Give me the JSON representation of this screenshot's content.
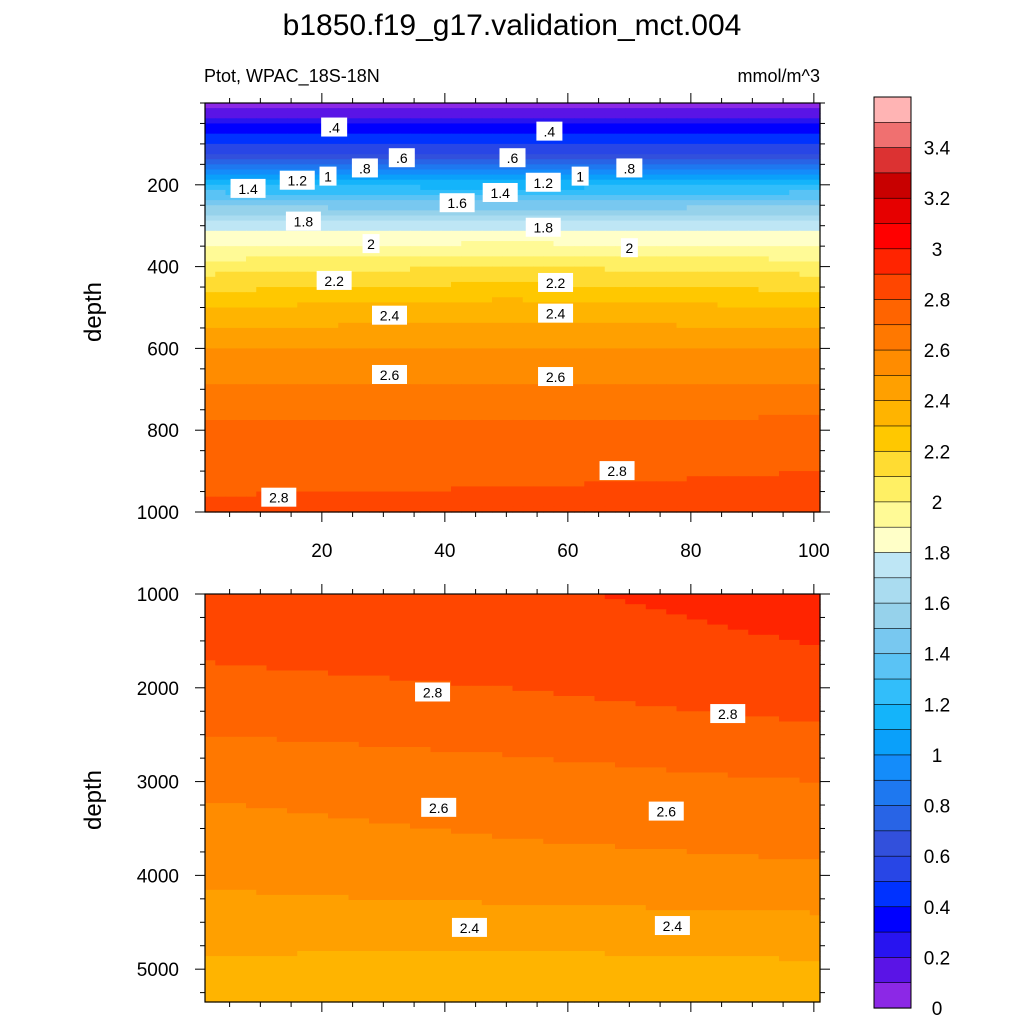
{
  "title": "b1850.f19_g17.validation_mct.004",
  "subtitle_left": "Ptot, WPAC_18S-18N",
  "subtitle_right": "mmol/m^3",
  "chart_data": [
    {
      "type": "heatmap",
      "panel": "upper",
      "ylabel": "depth",
      "xlim": [
        1,
        101
      ],
      "ylim": [
        0,
        1000
      ],
      "y_inverted": true,
      "xticks": [
        20,
        40,
        60,
        80,
        100
      ],
      "yticks": [
        200,
        400,
        600,
        800,
        1000
      ],
      "x": [
        0,
        50,
        100
      ],
      "y_levels": [
        {
          "depth": 0,
          "values": [
            0.0,
            0.0,
            0.0
          ]
        },
        {
          "depth": 50,
          "values": [
            0.3,
            0.3,
            0.3
          ]
        },
        {
          "depth": 120,
          "values": [
            0.6,
            0.6,
            0.6
          ]
        },
        {
          "depth": 200,
          "values": [
            1.2,
            1.15,
            1.2
          ]
        },
        {
          "depth": 300,
          "values": [
            1.75,
            1.75,
            1.75
          ]
        },
        {
          "depth": 400,
          "values": [
            2.05,
            2.1,
            2.05
          ]
        },
        {
          "depth": 500,
          "values": [
            2.3,
            2.35,
            2.3
          ]
        },
        {
          "depth": 600,
          "values": [
            2.5,
            2.5,
            2.5
          ]
        },
        {
          "depth": 700,
          "values": [
            2.62,
            2.62,
            2.62
          ]
        },
        {
          "depth": 800,
          "values": [
            2.72,
            2.72,
            2.74
          ]
        },
        {
          "depth": 900,
          "values": [
            2.77,
            2.78,
            2.8
          ]
        },
        {
          "depth": 1000,
          "values": [
            2.82,
            2.83,
            2.84
          ]
        }
      ],
      "contour_labels": [
        {
          "text": ".4",
          "x": 22,
          "depth": 60
        },
        {
          "text": ".4",
          "x": 57,
          "depth": 70
        },
        {
          "text": ".6",
          "x": 33,
          "depth": 135
        },
        {
          "text": ".6",
          "x": 51,
          "depth": 135
        },
        {
          "text": ".8",
          "x": 27,
          "depth": 160
        },
        {
          "text": ".8",
          "x": 70,
          "depth": 160
        },
        {
          "text": "1",
          "x": 21,
          "depth": 180
        },
        {
          "text": "1",
          "x": 62,
          "depth": 180
        },
        {
          "text": "1.2",
          "x": 16,
          "depth": 190
        },
        {
          "text": "1.2",
          "x": 56,
          "depth": 195
        },
        {
          "text": "1.4",
          "x": 8,
          "depth": 210
        },
        {
          "text": "1.4",
          "x": 49,
          "depth": 220
        },
        {
          "text": "1.6",
          "x": 42,
          "depth": 245
        },
        {
          "text": "1.8",
          "x": 17,
          "depth": 290
        },
        {
          "text": "1.8",
          "x": 56,
          "depth": 305
        },
        {
          "text": "2",
          "x": 28,
          "depth": 345
        },
        {
          "text": "2",
          "x": 70,
          "depth": 355
        },
        {
          "text": "2.2",
          "x": 22,
          "depth": 435
        },
        {
          "text": "2.2",
          "x": 58,
          "depth": 440
        },
        {
          "text": "2.4",
          "x": 31,
          "depth": 520
        },
        {
          "text": "2.4",
          "x": 58,
          "depth": 515
        },
        {
          "text": "2.6",
          "x": 31,
          "depth": 665
        },
        {
          "text": "2.6",
          "x": 58,
          "depth": 670
        },
        {
          "text": "2.8",
          "x": 13,
          "depth": 965
        },
        {
          "text": "2.8",
          "x": 68,
          "depth": 900
        }
      ]
    },
    {
      "type": "heatmap",
      "panel": "lower",
      "ylabel": "depth",
      "xlim": [
        1,
        101
      ],
      "ylim": [
        1000,
        5350
      ],
      "y_inverted": true,
      "xticks": [
        20,
        40,
        60,
        80,
        100
      ],
      "yticks": [
        1000,
        2000,
        3000,
        4000,
        5000
      ],
      "x": [
        0,
        50,
        100
      ],
      "y_levels": [
        {
          "depth": 1000,
          "values": [
            2.85,
            2.88,
            2.95
          ]
        },
        {
          "depth": 2000,
          "values": [
            2.78,
            2.8,
            2.86
          ]
        },
        {
          "depth": 3000,
          "values": [
            2.62,
            2.66,
            2.7
          ]
        },
        {
          "depth": 4000,
          "values": [
            2.52,
            2.56,
            2.58
          ]
        },
        {
          "depth": 5000,
          "values": [
            2.38,
            2.36,
            2.38
          ]
        }
      ],
      "contour_labels": [
        {
          "text": "2.8",
          "x": 38,
          "depth": 2050
        },
        {
          "text": "2.8",
          "x": 86,
          "depth": 2280
        },
        {
          "text": "2.6",
          "x": 39,
          "depth": 3280
        },
        {
          "text": "2.6",
          "x": 76,
          "depth": 3320
        },
        {
          "text": "2.4",
          "x": 44,
          "depth": 4560
        },
        {
          "text": "2.4",
          "x": 77,
          "depth": 4540
        }
      ]
    }
  ],
  "colorbar": {
    "labels": [
      "3.4",
      "3.2",
      "3",
      "2.8",
      "2.6",
      "2.4",
      "2.2",
      "2",
      "1.8",
      "1.6",
      "1.4",
      "1.2",
      "1",
      "0.8",
      "0.6",
      "0.4",
      "0.2",
      "0"
    ],
    "colors": [
      "#FFB4B4",
      "#F07070",
      "#DC3232",
      "#C80000",
      "#E60000",
      "#FF0000",
      "#FF2400",
      "#FF4600",
      "#FF6400",
      "#FF7800",
      "#FF8C00",
      "#FFA000",
      "#FFB400",
      "#FFC800",
      "#FFDC32",
      "#FFF064",
      "#FFFA96",
      "#FFFFC8",
      "#BEE6F5",
      "#AADCF0",
      "#96D2EB",
      "#78C8F0",
      "#5AC3F5",
      "#32BEFA",
      "#14B4FA",
      "#0AA0FA",
      "#148CFA",
      "#1E78F0",
      "#2864E6",
      "#3250DC",
      "#2846E6",
      "#0032FF",
      "#0000FF",
      "#2814F0",
      "#5A14E6",
      "#8C28E6"
    ]
  }
}
